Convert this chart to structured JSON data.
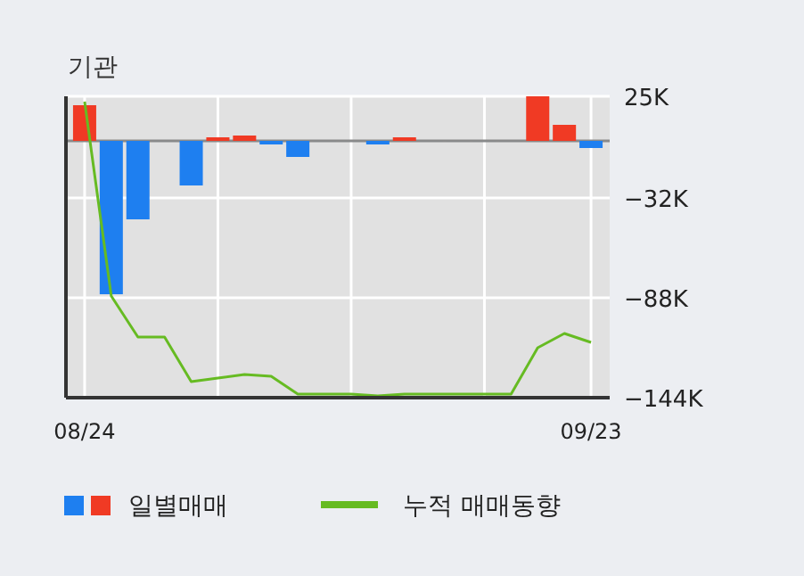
{
  "chart_data": {
    "type": "bar",
    "title": "기관",
    "categories": [
      "08/24",
      null,
      null,
      null,
      null,
      null,
      null,
      null,
      null,
      null,
      null,
      null,
      null,
      null,
      null,
      null,
      null,
      null,
      null,
      "09/23"
    ],
    "series": [
      {
        "name": "일별매매",
        "colors": [
          "#f03a24",
          "#1e7ff0",
          "#1e7ff0",
          "#1e7ff0",
          "#1e7ff0",
          "#f03a24",
          "#f03a24",
          "#1e7ff0",
          "#1e7ff0",
          "#1e7ff0",
          "#1e7ff0",
          "#1e7ff0",
          "#f03a24",
          "#1e7ff0",
          "#1e7ff0",
          "#1e7ff0",
          "#1e7ff0",
          "#f03a24",
          "#f03a24",
          "#1e7ff0"
        ],
        "values": [
          20,
          -86,
          -44,
          0,
          -25,
          2,
          3,
          -2,
          -9,
          0,
          0,
          -2,
          2,
          0,
          0,
          0,
          0,
          25,
          9,
          -4
        ]
      },
      {
        "name": "누적 매매동향",
        "type": "line",
        "color": "#66bb22",
        "values": [
          22,
          -87,
          -110,
          -110,
          -135,
          -133,
          -131,
          -132,
          -142,
          -142,
          -142,
          -143,
          -142,
          -142,
          -142,
          -142,
          -142,
          -116,
          -108,
          -113
        ]
      }
    ],
    "ylim": [
      -144,
      25
    ],
    "yticks": [
      {
        "value": 25,
        "label": "25K"
      },
      {
        "value": -32,
        "label": "−32K"
      },
      {
        "value": -88,
        "label": "−88K"
      },
      {
        "value": -144,
        "label": "−144K"
      }
    ],
    "grid": true,
    "legend": "bottom"
  }
}
